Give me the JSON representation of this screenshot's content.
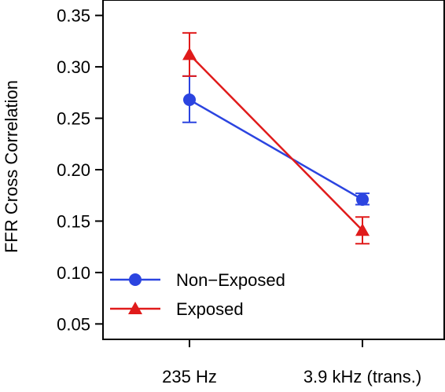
{
  "chart_data": {
    "type": "line",
    "title": "",
    "xlabel": "",
    "ylabel": "FFR Cross Correlation",
    "categories": [
      "235 Hz",
      "3.9 kHz (trans.)"
    ],
    "ylim": [
      0.035,
      0.365
    ],
    "yticks": [
      "0.05",
      "0.10",
      "0.15",
      "0.20",
      "0.25",
      "0.30",
      "0.35"
    ],
    "grid": false,
    "legend_position": "bottom-left",
    "series": [
      {
        "name": "Non−Exposed",
        "color": "#2b44e0",
        "marker": "circle",
        "values": [
          0.268,
          0.171
        ],
        "err_low": [
          0.246,
          0.166
        ],
        "err_high": [
          0.291,
          0.177
        ]
      },
      {
        "name": "Exposed",
        "color": "#e01b1b",
        "marker": "triangle",
        "values": [
          0.312,
          0.141
        ],
        "err_low": [
          0.291,
          0.128
        ],
        "err_high": [
          0.333,
          0.154
        ]
      }
    ]
  }
}
